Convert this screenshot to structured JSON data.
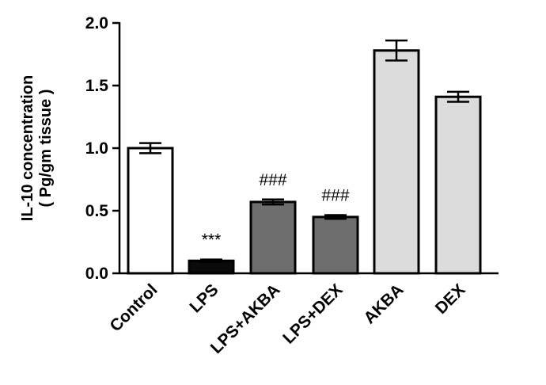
{
  "chart_data": {
    "type": "bar",
    "title": "",
    "xlabel": "",
    "ylabel": [
      "IL-10 concentration",
      "( Pg/gm  tissue )"
    ],
    "ylim": [
      0,
      2.0
    ],
    "yticks": [
      "0.0",
      "0.5",
      "1.0",
      "1.5",
      "2.0"
    ],
    "grid": false,
    "legend": "none",
    "categories": [
      "Control",
      "LPS",
      "LPS+AKBA",
      "LPS+DEX",
      "AKBA",
      "DEX"
    ],
    "values": [
      1.0,
      0.1,
      0.57,
      0.45,
      1.78,
      1.41
    ],
    "errors": [
      0.04,
      0.01,
      0.02,
      0.015,
      0.08,
      0.04
    ],
    "annotations": [
      "",
      "***",
      "###",
      "###",
      "",
      ""
    ],
    "bar_colors": [
      "#ffffff",
      "#0a0a0a",
      "#6e6e6e",
      "#6e6e6e",
      "#dcdcdc",
      "#dcdcdc"
    ]
  }
}
